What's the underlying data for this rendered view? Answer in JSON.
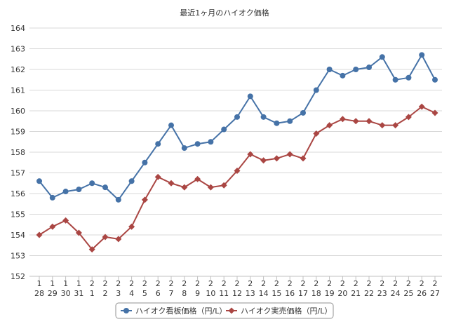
{
  "chart_data": {
    "type": "line",
    "title": "最近1ヶ月のハイオク価格",
    "xlabel": "",
    "ylabel": "",
    "ylim": [
      152,
      164
    ],
    "yticks": [
      "152",
      "153",
      "154",
      "155",
      "156",
      "157",
      "158",
      "159",
      "160",
      "161",
      "162",
      "163",
      "164"
    ],
    "grid": true,
    "legend_position": "bottom",
    "categories": [
      {
        "month": "1",
        "day": "28"
      },
      {
        "month": "1",
        "day": "29"
      },
      {
        "month": "1",
        "day": "30"
      },
      {
        "month": "1",
        "day": "31"
      },
      {
        "month": "2",
        "day": "1"
      },
      {
        "month": "2",
        "day": "2"
      },
      {
        "month": "2",
        "day": "3"
      },
      {
        "month": "2",
        "day": "4"
      },
      {
        "month": "2",
        "day": "5"
      },
      {
        "month": "2",
        "day": "6"
      },
      {
        "month": "2",
        "day": "7"
      },
      {
        "month": "2",
        "day": "8"
      },
      {
        "month": "2",
        "day": "9"
      },
      {
        "month": "2",
        "day": "10"
      },
      {
        "month": "2",
        "day": "11"
      },
      {
        "month": "2",
        "day": "12"
      },
      {
        "month": "2",
        "day": "13"
      },
      {
        "month": "2",
        "day": "14"
      },
      {
        "month": "2",
        "day": "15"
      },
      {
        "month": "2",
        "day": "16"
      },
      {
        "month": "2",
        "day": "17"
      },
      {
        "month": "2",
        "day": "18"
      },
      {
        "month": "2",
        "day": "19"
      },
      {
        "month": "2",
        "day": "20"
      },
      {
        "month": "2",
        "day": "21"
      },
      {
        "month": "2",
        "day": "22"
      },
      {
        "month": "2",
        "day": "23"
      },
      {
        "month": "2",
        "day": "24"
      },
      {
        "month": "2",
        "day": "25"
      },
      {
        "month": "2",
        "day": "26"
      },
      {
        "month": "2",
        "day": "27"
      }
    ],
    "series": [
      {
        "name": "ハイオク看板価格（円/L）",
        "color": "#4572a7",
        "marker": "circle",
        "values": [
          156.6,
          155.8,
          156.1,
          156.2,
          156.5,
          156.3,
          155.7,
          156.6,
          157.5,
          158.4,
          159.3,
          158.2,
          158.4,
          158.5,
          159.1,
          159.7,
          160.7,
          159.7,
          159.4,
          159.5,
          159.9,
          161.0,
          162.0,
          161.7,
          162.0,
          162.1,
          162.6,
          161.5,
          161.6,
          162.7,
          161.5
        ]
      },
      {
        "name": "ハイオク実売価格（円/L）",
        "color": "#aa4643",
        "marker": "diamond",
        "values": [
          154.0,
          154.4,
          154.7,
          154.1,
          153.3,
          153.9,
          153.8,
          154.4,
          155.7,
          156.8,
          156.5,
          156.3,
          156.7,
          156.3,
          156.4,
          157.1,
          157.9,
          157.6,
          157.7,
          157.9,
          157.7,
          158.9,
          159.3,
          159.6,
          159.5,
          159.5,
          159.3,
          159.3,
          159.7,
          160.2,
          159.9
        ]
      }
    ]
  }
}
